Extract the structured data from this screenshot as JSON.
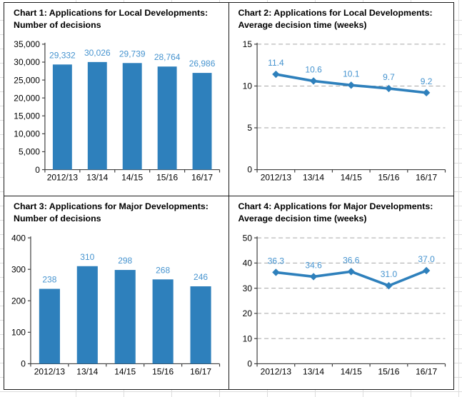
{
  "colors": {
    "series_blue": "#2E80BC",
    "data_label_blue": "#4593CF",
    "axis": "#404040",
    "gridline": "#A6A6A6",
    "tick_text": "#000000"
  },
  "chart_data": [
    {
      "type": "bar",
      "title_line1": "Chart 1: Applications for Local Developments:",
      "title_line2": "Number of decisions",
      "categories": [
        "2012/13",
        "13/14",
        "14/15",
        "15/16",
        "16/17"
      ],
      "values": [
        29332,
        30026,
        29739,
        28764,
        26986
      ],
      "value_labels": [
        "29,332",
        "30,026",
        "29,739",
        "28,764",
        "26,986"
      ],
      "ylim": [
        0,
        35000
      ],
      "yticks": [
        0,
        5000,
        10000,
        15000,
        20000,
        25000,
        30000,
        35000
      ],
      "ytick_labels": [
        "0",
        "5,000",
        "10,000",
        "15,000",
        "20,000",
        "25,000",
        "30,000",
        "35,000"
      ],
      "grid": false,
      "legend": "none"
    },
    {
      "type": "line",
      "title_line1": "Chart 2: Applications for Local Developments:",
      "title_line2": "Average decision time (weeks)",
      "categories": [
        "2012/13",
        "13/14",
        "14/15",
        "15/16",
        "16/17"
      ],
      "values": [
        11.4,
        10.6,
        10.1,
        9.7,
        9.2
      ],
      "value_labels": [
        "11.4",
        "10.6",
        "10.1",
        "9.7",
        "9.2"
      ],
      "ylim": [
        0,
        15
      ],
      "yticks": [
        0,
        5,
        10,
        15
      ],
      "ytick_labels": [
        "0",
        "5",
        "10",
        "15"
      ],
      "grid": true,
      "legend": "none"
    },
    {
      "type": "bar",
      "title_line1": "Chart 3: Applications for Major Developments:",
      "title_line2": "Number of decisions",
      "categories": [
        "2012/13",
        "13/14",
        "14/15",
        "15/16",
        "16/17"
      ],
      "values": [
        238,
        310,
        298,
        268,
        246
      ],
      "value_labels": [
        "238",
        "310",
        "298",
        "268",
        "246"
      ],
      "ylim": [
        0,
        400
      ],
      "yticks": [
        0,
        100,
        200,
        300,
        400
      ],
      "ytick_labels": [
        "0",
        "100",
        "200",
        "300",
        "400"
      ],
      "grid": false,
      "legend": "none"
    },
    {
      "type": "line",
      "title_line1": "Chart 4: Applications for Major Developments:",
      "title_line2": "Average decision time (weeks)",
      "categories": [
        "2012/13",
        "13/14",
        "14/15",
        "15/16",
        "16/17"
      ],
      "values": [
        36.3,
        34.6,
        36.6,
        31.0,
        37.0
      ],
      "value_labels": [
        "36.3",
        "34.6",
        "36.6",
        "31.0",
        "37.0"
      ],
      "ylim": [
        0,
        50
      ],
      "yticks": [
        0,
        10,
        20,
        30,
        40,
        50
      ],
      "ytick_labels": [
        "0",
        "10",
        "20",
        "30",
        "40",
        "50"
      ],
      "grid": true,
      "legend": "none"
    }
  ]
}
